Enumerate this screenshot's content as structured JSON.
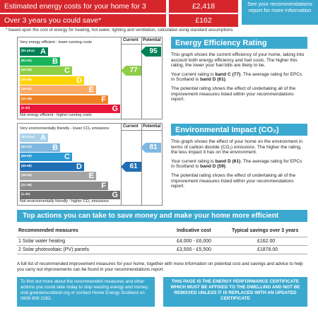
{
  "costs": {
    "rows": [
      {
        "label": "Estimated energy costs for your home for 3 years*",
        "value": "£2,418"
      },
      {
        "label": "Over 3 years you could save*",
        "value": "£162"
      }
    ],
    "see_box": "See your recommendations report for more information",
    "footnote": "* based upon the cost of energy for heating, hot water, lighting and ventilation, calculated using standard assumptions"
  },
  "eer_chart": {
    "col_current": "Current",
    "col_potential": "Potential",
    "top_caption": "Very energy efficient - lower running costs",
    "bottom_caption": "Not energy efficient - higher running costs",
    "bands": [
      {
        "range": "(92 plus)",
        "letter": "A",
        "color": "#008054"
      },
      {
        "range": "(81-91)",
        "letter": "B",
        "color": "#19b459"
      },
      {
        "range": "(69-80)",
        "letter": "C",
        "color": "#8dce46"
      },
      {
        "range": "(55-68)",
        "letter": "D",
        "color": "#ffd500"
      },
      {
        "range": "(39-54)",
        "letter": "E",
        "color": "#fcaa65"
      },
      {
        "range": "(21-38)",
        "letter": "F",
        "color": "#ef8023"
      },
      {
        "range": "(1-20)",
        "letter": "G",
        "color": "#e9153b"
      }
    ],
    "current": {
      "value": "77",
      "color": "#8dce46"
    },
    "potential": {
      "value": "95",
      "color": "#008054"
    }
  },
  "eir_chart": {
    "col_current": "Current",
    "col_potential": "Potential",
    "top_caption": "Very environmentally friendly - lower CO₂ emissions",
    "bottom_caption": "Not environmentally friendly - higher CO₂ emissions",
    "bands": [
      {
        "range": "(92 plus)",
        "letter": "A",
        "color": "#a8d1ea"
      },
      {
        "range": "(81-91)",
        "letter": "B",
        "color": "#7fb8e1"
      },
      {
        "range": "(69-80)",
        "letter": "C",
        "color": "#2e9ad6"
      },
      {
        "range": "(55-68)",
        "letter": "D",
        "color": "#1f6fb5"
      },
      {
        "range": "(39-54)",
        "letter": "E",
        "color": "#a5a5a5"
      },
      {
        "range": "(21-38)",
        "letter": "F",
        "color": "#8c8c8c"
      },
      {
        "range": "(1-20)",
        "letter": "G",
        "color": "#6f6f6f"
      }
    ],
    "current": {
      "value": "61",
      "color": "#1f6fb5"
    },
    "potential": {
      "value": "81",
      "color": "#7fb8e1"
    }
  },
  "eer_panel": {
    "title": "Energy Efficiency Rating",
    "p1": "This graph shows the current efficiency of your home, taking into account both energy efficiency and fuel costs. The higher this rating, the lower your fuel bills are likely to be.",
    "p2_pre": "Your current rating is ",
    "p2_bold": "band C (77)",
    "p2_mid": ". The average rating for EPCs in Scotland is ",
    "p2_bold2": "band D (61)",
    "p2_end": ".",
    "p3": "The potential rating shows the effect of undertaking all of the improvement measures listed within your recommendations report."
  },
  "eir_panel": {
    "title": "Environmental Impact (CO₂) Rating",
    "p1": "This graph shows the effect of your home on the environment in terms of carbon dioxide (CO₂) emissions. The higher the rating, the less impact it has on the environment.",
    "p2_pre": "Your current rating is ",
    "p2_bold": "band D (61)",
    "p2_mid": ". The average rating for EPCs in Scotland is ",
    "p2_bold2": "band D (59)",
    "p2_end": ".",
    "p3": "The potential rating shows the effect of undertaking all of the improvement measures listed within your recommendations report."
  },
  "actions": {
    "title": "Top actions you can take to save money and make your home more efficient",
    "headers": [
      "Recommended measures",
      "Indicative cost",
      "Typical savings over 3 years"
    ],
    "rows": [
      [
        "1 Solar water heating",
        "£4,000 - £6,000",
        "£162.00"
      ],
      [
        "2 Solar photovoltaic (PV) panels",
        "£3,500 - £5,500",
        "£1878.00"
      ]
    ],
    "note": "A full list of recommended improvement measures for your home, together with more information on potential cost and savings and advice to help you carry out improvements can be found in your recommendations report."
  },
  "bottom": {
    "left": "To find out more about the recommended measures and other actions you could take today to stop wasting energy and money, visit greenerscotland.org or contact Home Energy Scotland on 0808 808 2282.",
    "right": "THIS PAGE IS THE ENERGY PERFORMANCE CERTIFICATE WHICH MUST BE AFFIXED TO THE DWELLING AND NOT BE REMOVED UNLESS IT IS REPLACED WITH AN UPDATED CERTIFICATE"
  }
}
